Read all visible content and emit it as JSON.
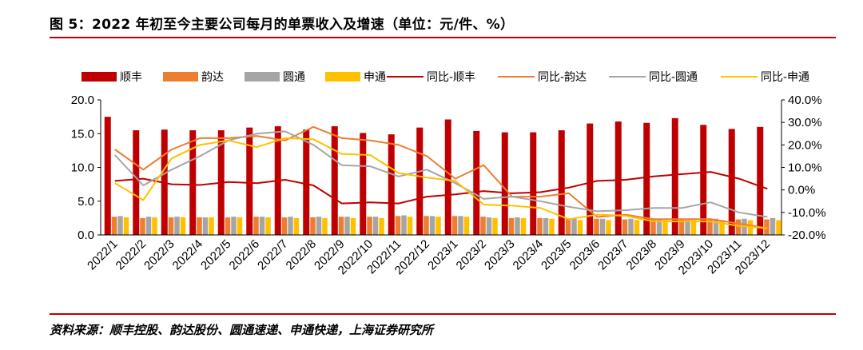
{
  "header": {
    "title": "图 5：2022 年初至今主要公司每月的单票收入及增速（单位：元/件、%）"
  },
  "footer": {
    "source": "资料来源：顺丰控股、韵达股份、圆通速递、申通快递，上海证券研究所"
  },
  "colors": {
    "shunfeng": "#c00000",
    "yunda": "#ed7d31",
    "yuantong": "#a5a5a5",
    "shentong": "#ffc000",
    "rule": "#c00000"
  },
  "chart_data": {
    "type": "bar",
    "categories": [
      "2022/1",
      "2022/2",
      "2022/3",
      "2022/4",
      "2022/5",
      "2022/6",
      "2022/7",
      "2022/8",
      "2022/9",
      "2022/10",
      "2022/11",
      "2022/12",
      "2023/1",
      "2023/2",
      "2023/3",
      "2023/4",
      "2023/5",
      "2023/6",
      "2023/7",
      "2023/8",
      "2023/9",
      "2023/10",
      "2023/11",
      "2023/12"
    ],
    "y_left": {
      "ylim": [
        0,
        20
      ],
      "ticks": [
        "0.0",
        "5.0",
        "10.0",
        "15.0",
        "20.0"
      ]
    },
    "y_right": {
      "ylim": [
        -20,
        40
      ],
      "ticks": [
        "-20.0%",
        "-10.0%",
        "0.0%",
        "10.0%",
        "20.0%",
        "30.0%",
        "40.0%"
      ]
    },
    "legend_position": "top",
    "series": [
      {
        "name": "顺丰",
        "kind": "bar",
        "axis": "left",
        "color": "#c00000",
        "values": [
          17.5,
          15.5,
          15.6,
          15.5,
          15.5,
          15.9,
          16.1,
          15.6,
          16.1,
          15.1,
          14.9,
          15.9,
          17.1,
          15.4,
          15.2,
          15.2,
          15.5,
          16.5,
          16.8,
          16.6,
          17.3,
          16.3,
          15.7,
          16.0
        ]
      },
      {
        "name": "韵达",
        "kind": "bar",
        "axis": "left",
        "color": "#ed7d31",
        "values": [
          2.7,
          2.5,
          2.6,
          2.6,
          2.6,
          2.7,
          2.6,
          2.6,
          2.7,
          2.7,
          2.8,
          2.8,
          2.8,
          2.7,
          2.5,
          2.5,
          2.4,
          2.4,
          2.3,
          2.3,
          2.3,
          2.3,
          2.3,
          2.3
        ]
      },
      {
        "name": "圆通",
        "kind": "bar",
        "axis": "left",
        "color": "#a5a5a5",
        "values": [
          2.8,
          2.7,
          2.7,
          2.6,
          2.7,
          2.7,
          2.7,
          2.7,
          2.7,
          2.7,
          2.9,
          2.8,
          2.8,
          2.6,
          2.6,
          2.5,
          2.4,
          2.4,
          2.4,
          2.4,
          2.4,
          2.4,
          2.4,
          2.5
        ]
      },
      {
        "name": "申通",
        "kind": "bar",
        "axis": "left",
        "color": "#ffc000",
        "values": [
          2.6,
          2.6,
          2.6,
          2.6,
          2.6,
          2.6,
          2.5,
          2.5,
          2.5,
          2.5,
          2.7,
          2.7,
          2.7,
          2.5,
          2.5,
          2.4,
          2.2,
          2.2,
          2.2,
          2.2,
          2.2,
          2.2,
          2.2,
          2.2
        ]
      },
      {
        "name": "同比-顺丰",
        "kind": "line",
        "axis": "right",
        "color": "#c00000",
        "values": [
          4,
          5,
          2.5,
          2.2,
          3.5,
          3,
          4.5,
          2,
          -6,
          -5.5,
          -6,
          -3,
          -2,
          -0.5,
          -1.5,
          -1,
          1,
          4,
          4.5,
          6,
          7,
          8,
          5,
          0.5
        ]
      },
      {
        "name": "同比-韵达",
        "kind": "line",
        "axis": "right",
        "color": "#ed7d31",
        "values": [
          18,
          9,
          18,
          23,
          23,
          24,
          22,
          28,
          23,
          22,
          20,
          15,
          5,
          11,
          -3,
          -3,
          -1.5,
          -12,
          -11,
          -13,
          -13,
          -13,
          -15,
          -17
        ]
      },
      {
        "name": "同比-圆通",
        "kind": "line",
        "axis": "right",
        "color": "#a5a5a5",
        "values": [
          15.5,
          2,
          9,
          15,
          22,
          25,
          26,
          20,
          11,
          10.5,
          6,
          9,
          3,
          -4,
          -3,
          -5,
          -7.5,
          -9.5,
          -9,
          -8,
          -8,
          -5.5,
          -10,
          -12
        ]
      },
      {
        "name": "同比-申通",
        "kind": "line",
        "axis": "right",
        "color": "#ffc000",
        "values": [
          3,
          -4.5,
          14,
          20,
          22,
          19,
          23,
          22.5,
          16,
          15.5,
          7.5,
          5.5,
          4,
          -6.5,
          -7,
          -8,
          -13,
          -11,
          -11.5,
          -14,
          -14,
          -14,
          -16,
          -17
        ]
      }
    ]
  }
}
